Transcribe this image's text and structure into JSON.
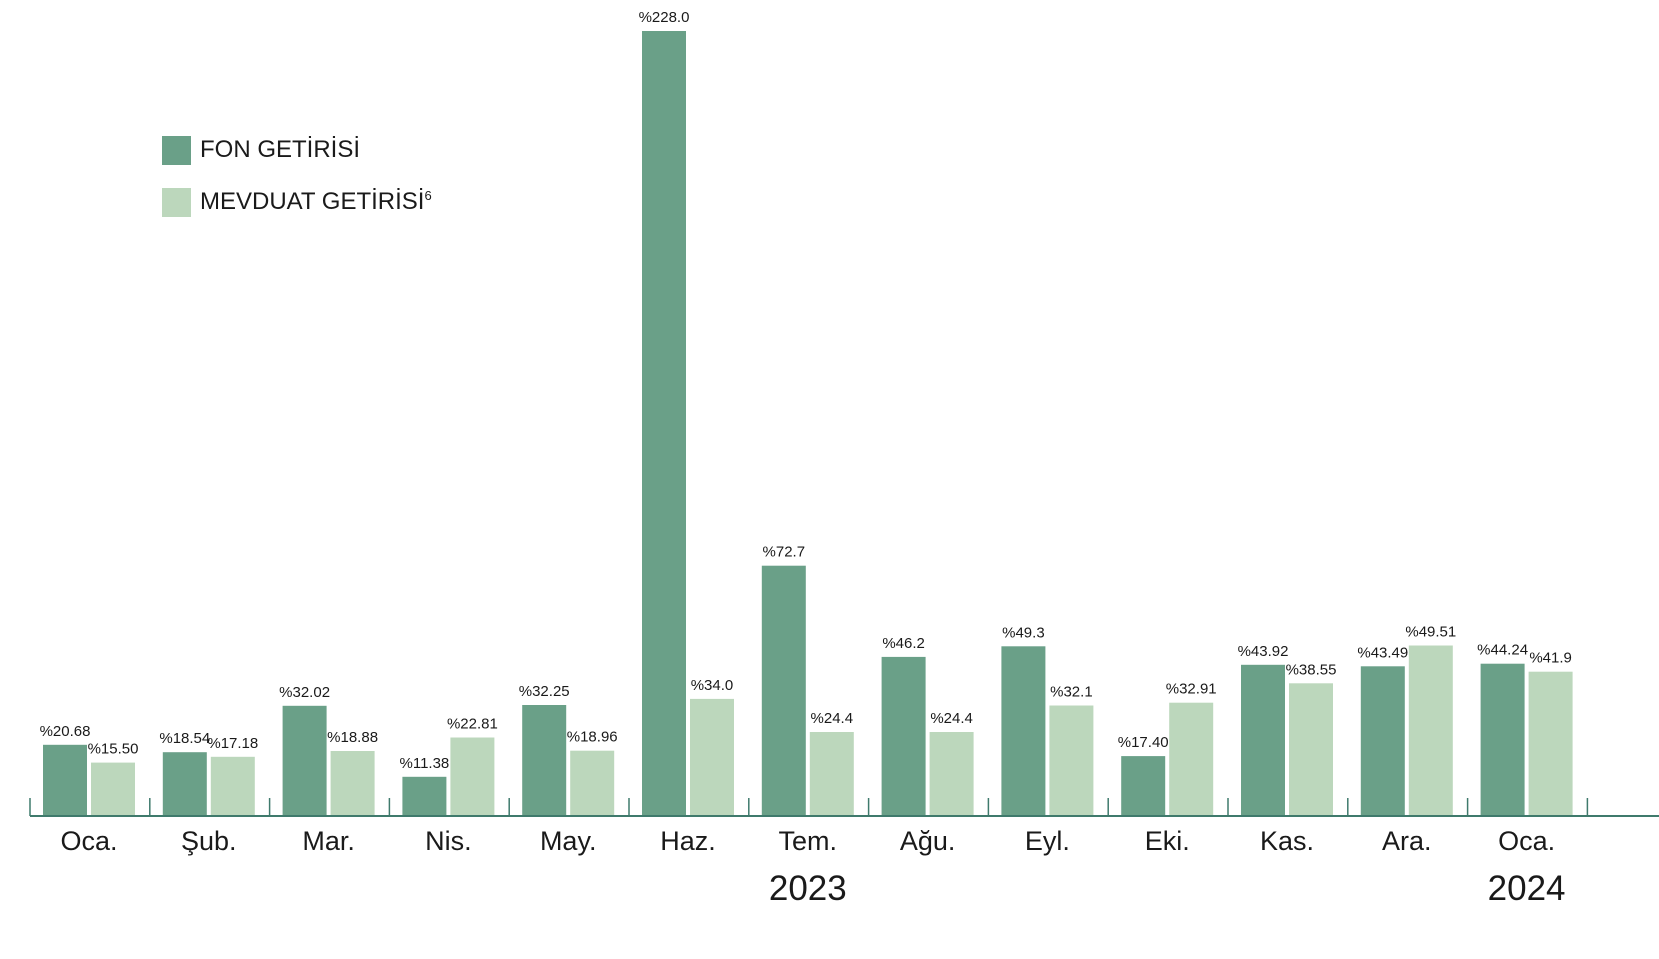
{
  "colors": {
    "fund": "#6aa088",
    "deposit": "#bcd7bc",
    "axis": "#3f7a6c"
  },
  "legend": {
    "fund_label": "FON GETİRİSİ",
    "deposit_label": "MEVDUAT GETİRİSİ",
    "deposit_footnote": "6"
  },
  "chart_data": {
    "type": "bar",
    "categories": [
      "Oca.",
      "Şub.",
      "Mar.",
      "Nis.",
      "May.",
      "Haz.",
      "Tem.",
      "Ağu.",
      "Eyl.",
      "Eki.",
      "Kas.",
      "Ara.",
      "Oca."
    ],
    "year_labels": [
      {
        "label": "2023",
        "category_index": 6
      },
      {
        "label": "2024",
        "category_index": 12
      }
    ],
    "series": [
      {
        "name": "FON GETİRİSİ",
        "values": [
          20.68,
          18.54,
          32.02,
          11.38,
          32.25,
          228.0,
          72.7,
          46.2,
          49.3,
          17.4,
          43.92,
          43.49,
          44.24
        ],
        "labels": [
          "%20.68",
          "%18.54",
          "%32.02",
          "%11.38",
          "%32.25",
          "%228.0",
          "%72.7",
          "%46.2",
          "%49.3",
          "%17.40",
          "%43.92",
          "%43.49",
          "%44.24"
        ]
      },
      {
        "name": "MEVDUAT GETİRİSİ",
        "values": [
          15.5,
          17.18,
          18.88,
          22.81,
          18.96,
          34.0,
          24.4,
          24.4,
          32.1,
          32.91,
          38.55,
          49.51,
          41.9
        ],
        "labels": [
          "%15.50",
          "%17.18",
          "%18.88",
          "%22.81",
          "%18.96",
          "%34.0",
          "%24.4",
          "%24.4",
          "%32.1",
          "%32.91",
          "%38.55",
          "%49.51",
          "%41.9"
        ]
      }
    ],
    "ylim": [
      0,
      228
    ],
    "grid": false,
    "legend_position": "top-left"
  }
}
